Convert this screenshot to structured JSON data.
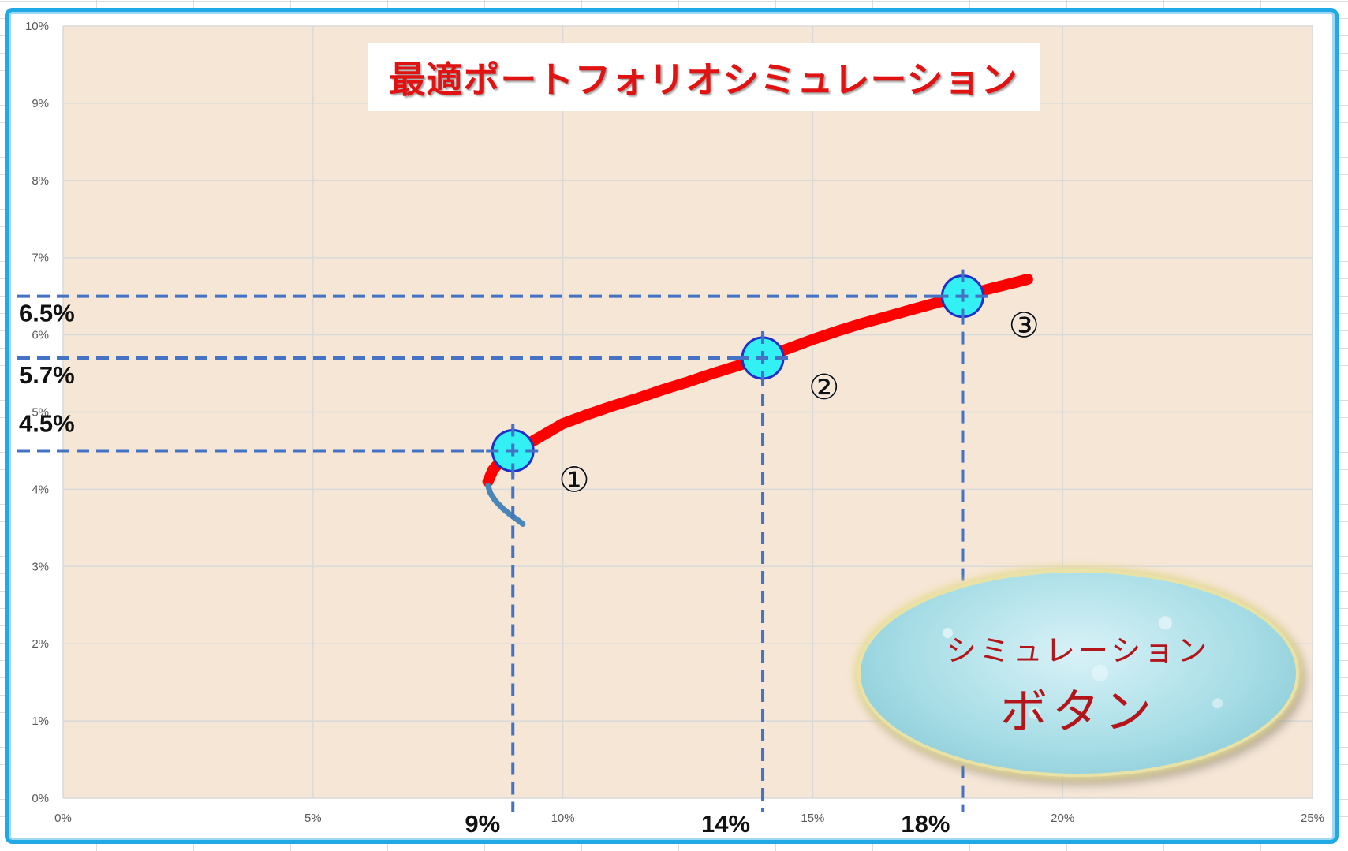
{
  "chart_data": {
    "type": "scatter",
    "title": "最適ポートフォリオシミュレーション",
    "xlabel": "",
    "ylabel": "",
    "xlim": [
      0,
      25
    ],
    "ylim": [
      0,
      10
    ],
    "x_ticks": [
      "0%",
      "5%",
      "10%",
      "15%",
      "20%",
      "25%"
    ],
    "y_ticks": [
      "0%",
      "1%",
      "2%",
      "3%",
      "4%",
      "5%",
      "6%",
      "7%",
      "8%",
      "9%",
      "10%"
    ],
    "grid": true,
    "series": [
      {
        "color": "#ff0000",
        "points": [
          [
            8.5,
            4.1
          ],
          [
            8.6,
            4.25
          ],
          [
            8.8,
            4.4
          ],
          [
            9.2,
            4.55
          ],
          [
            9.6,
            4.7
          ],
          [
            10.0,
            4.85
          ],
          [
            10.5,
            4.97
          ],
          [
            11.0,
            5.08
          ],
          [
            11.5,
            5.18
          ],
          [
            12.0,
            5.29
          ],
          [
            12.5,
            5.39
          ],
          [
            13.0,
            5.5
          ],
          [
            13.5,
            5.6
          ],
          [
            14.0,
            5.7
          ],
          [
            14.5,
            5.82
          ],
          [
            15.0,
            5.94
          ],
          [
            15.5,
            6.05
          ],
          [
            16.0,
            6.15
          ],
          [
            16.5,
            6.24
          ],
          [
            17.0,
            6.33
          ],
          [
            17.5,
            6.42
          ],
          [
            18.0,
            6.5
          ],
          [
            18.5,
            6.59
          ],
          [
            19.0,
            6.67
          ],
          [
            19.3,
            6.72
          ]
        ]
      },
      {
        "color": "#4a86b8",
        "points": [
          [
            8.5,
            4.05
          ],
          [
            8.55,
            3.95
          ],
          [
            8.65,
            3.85
          ],
          [
            8.8,
            3.75
          ],
          [
            8.95,
            3.67
          ],
          [
            9.1,
            3.6
          ],
          [
            9.2,
            3.55
          ]
        ]
      }
    ],
    "highlighted_points": [
      {
        "label": "①",
        "x": 9,
        "y": 4.5,
        "x_label": "9%",
        "y_label": "4.5%"
      },
      {
        "label": "②",
        "x": 14,
        "y": 5.7,
        "x_label": "14%",
        "y_label": "5.7%"
      },
      {
        "label": "③",
        "x": 18,
        "y": 6.5,
        "x_label": "18%",
        "y_label": "6.5%"
      }
    ]
  },
  "colors": {
    "plot_background": "#f5e6d6",
    "frame_border": "#21a9e6",
    "marker_fill": "#33f0f5",
    "marker_stroke": "#1f2fc8",
    "guide_line": "#4472c4",
    "title_color": "#e01212",
    "button_text": "#b3151a"
  },
  "simulation_button": {
    "line1": "シミュレーション",
    "line2": "ボタン"
  }
}
